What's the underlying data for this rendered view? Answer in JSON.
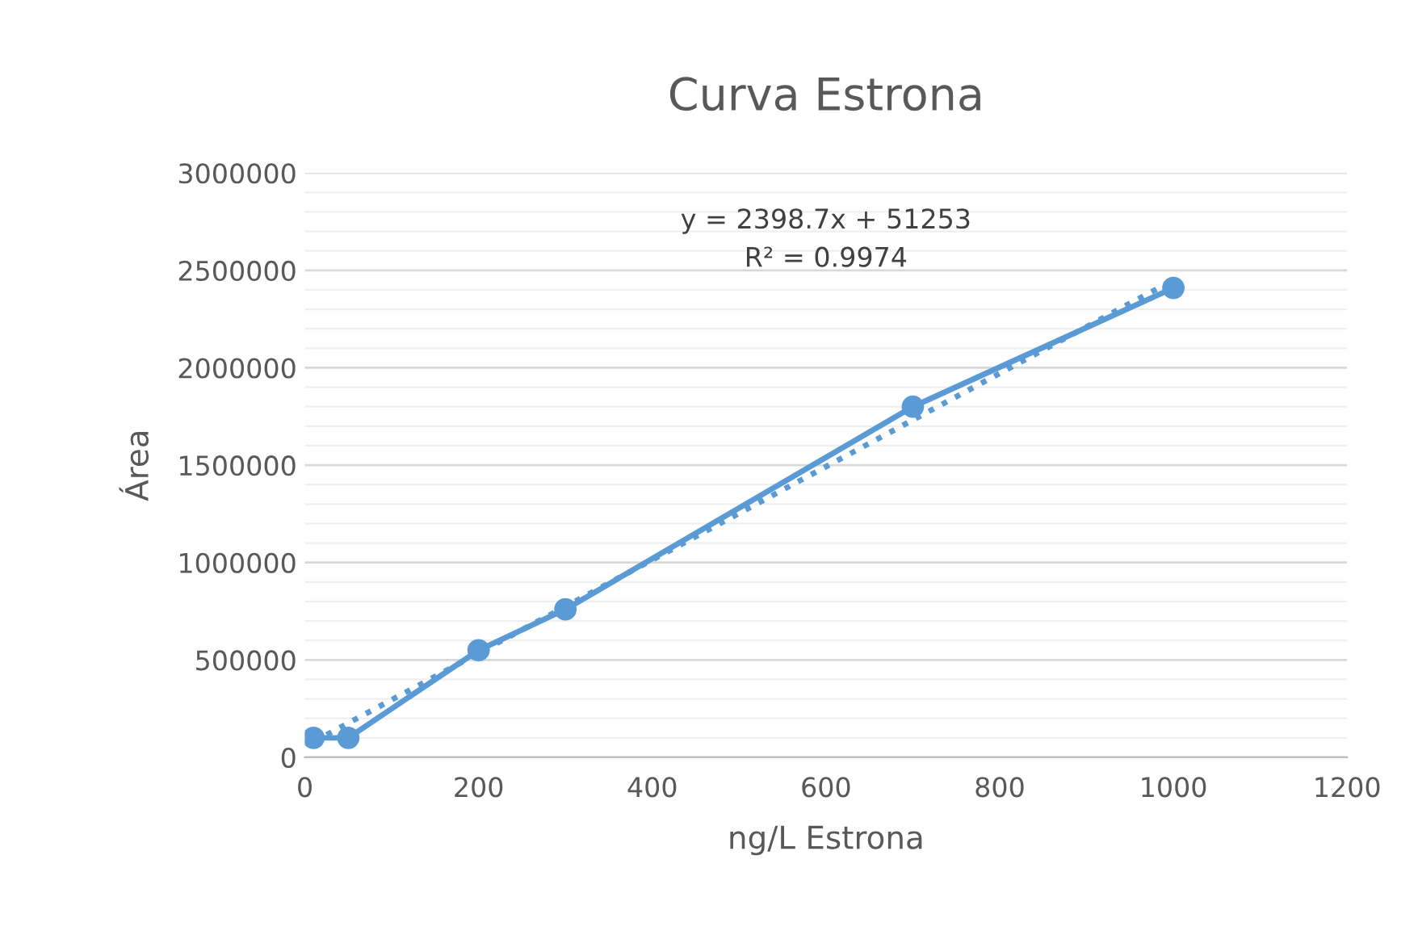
{
  "chart_data": {
    "type": "line",
    "title": "Curva Estrona",
    "xlabel": "ng/L Estrona",
    "ylabel": "Área",
    "x": [
      10,
      50,
      200,
      300,
      700,
      1000
    ],
    "series": [
      {
        "color": "#5b9bd5",
        "values": [
          100000,
          100000,
          550000,
          760000,
          1800000,
          2410000
        ],
        "marker": "circle",
        "line_style": "solid"
      },
      {
        "type": "line",
        "color": "#5b9bd5",
        "x": [
          10,
          1000
        ],
        "values": [
          80000,
          2450000
        ],
        "marker": "none",
        "line_style": "dotted"
      }
    ],
    "xlim": [
      0,
      1200
    ],
    "xticks": [
      0,
      200,
      400,
      600,
      800,
      1000,
      1200
    ],
    "ylim": [
      0,
      3000000
    ],
    "yticks": [
      0,
      500000,
      1000000,
      1500000,
      2000000,
      2500000,
      3000000
    ],
    "grid": "y",
    "legend": false,
    "annotations": [
      "y = 2398.7x + 51253\nR² = 0.9974"
    ]
  }
}
